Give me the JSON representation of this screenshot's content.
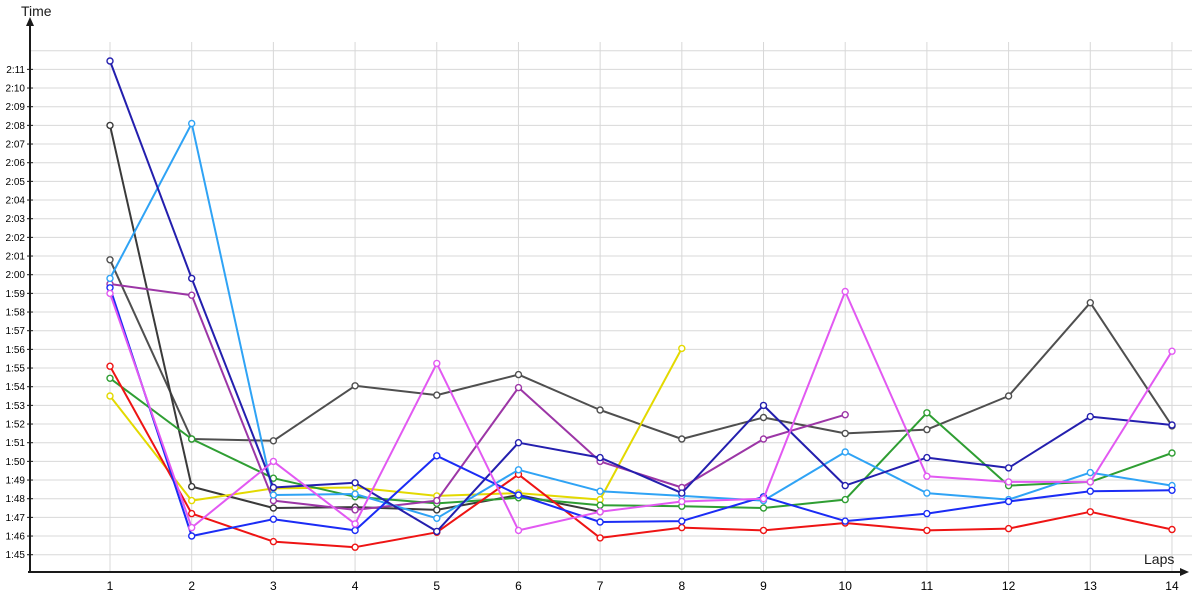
{
  "labels": {
    "y_axis_title": "Time",
    "x_axis_title": "Laps"
  },
  "axes": {
    "y_tick_labels": [
      "2:11",
      "2:10",
      "2:09",
      "2:08",
      "2:07",
      "2:06",
      "2:05",
      "2:04",
      "2:03",
      "2:02",
      "2:01",
      "2:00",
      "1:59",
      "1:58",
      "1:57",
      "1:56",
      "1:55",
      "1:54",
      "1:53",
      "1:52",
      "1:51",
      "1:50",
      "1:49",
      "1:48",
      "1:47",
      "1:46",
      "1:45"
    ],
    "x_tick_labels": [
      "1",
      "2",
      "3",
      "4",
      "5",
      "6",
      "7",
      "8",
      "9",
      "10",
      "11",
      "12",
      "13",
      "14"
    ]
  },
  "chart_data": {
    "type": "line",
    "title": "",
    "xlabel": "Laps",
    "ylabel": "Time",
    "x": [
      1,
      2,
      3,
      4,
      5,
      6,
      7,
      8,
      9,
      10,
      11,
      12,
      13,
      14
    ],
    "y_axis_range_seconds": [
      105,
      132
    ],
    "y_tick_step_seconds": 1,
    "grid": true,
    "legend_position": "none",
    "marker": "open-circle",
    "series": [
      {
        "id": "charcoal-gray",
        "color": "#4f4f4f",
        "laps": [
          1,
          2,
          3,
          4,
          5,
          6,
          7,
          8,
          9,
          10,
          11,
          12,
          13,
          14
        ],
        "seconds": [
          120.8,
          111.2,
          111.1,
          114.05,
          113.55,
          114.65,
          112.75,
          111.2,
          112.35,
          111.5,
          111.7,
          113.5,
          118.5,
          111.9
        ],
        "lap_times": [
          "2:00.8",
          "1:51.2",
          "1:51.1",
          "1:54.1",
          "1:53.6",
          "1:54.7",
          "1:52.8",
          "1:51.2",
          "1:52.4",
          "1:51.5",
          "1:51.7",
          "1:53.5",
          "1:58.5",
          "1:51.9"
        ]
      },
      {
        "id": "dark-gray",
        "color": "#3a3a3a",
        "laps": [
          1,
          2,
          3,
          4,
          5,
          6,
          7
        ],
        "seconds": [
          128.0,
          108.65,
          107.5,
          107.55,
          107.4,
          108.2,
          107.3
        ],
        "lap_times": [
          "2:08.0",
          "1:48.7",
          "1:47.5",
          "1:47.6",
          "1:47.4",
          "1:48.2",
          "1:47.3"
        ]
      },
      {
        "id": "yellow",
        "color": "#e3d900",
        "laps": [
          1,
          2,
          3,
          4,
          5,
          6,
          7,
          8
        ],
        "seconds": [
          113.5,
          107.9,
          108.55,
          108.6,
          108.15,
          108.3,
          107.95,
          116.05
        ],
        "lap_times": [
          "1:53.5",
          "1:47.9",
          "1:48.6",
          "1:48.6",
          "1:48.2",
          "1:48.3",
          "1:48.0",
          "1:56.1"
        ]
      },
      {
        "id": "green",
        "color": "#2f9e33",
        "laps": [
          1,
          2,
          3,
          4,
          5,
          6,
          7,
          8,
          9,
          10,
          11,
          12,
          13,
          14
        ],
        "seconds": [
          114.45,
          111.2,
          109.1,
          108.1,
          107.75,
          108.05,
          107.65,
          107.6,
          107.5,
          107.95,
          112.6,
          108.7,
          108.9,
          110.45
        ],
        "lap_times": [
          "1:54.5",
          "1:51.2",
          "1:49.1",
          "1:48.1",
          "1:47.8",
          "1:48.1",
          "1:47.7",
          "1:47.6",
          "1:47.5",
          "1:48.0",
          "1:52.6",
          "1:48.7",
          "1:48.9",
          "1:50.5"
        ]
      },
      {
        "id": "purple",
        "color": "#9c36a6",
        "laps": [
          1,
          2,
          3,
          4,
          5,
          6,
          7,
          8,
          9,
          10
        ],
        "seconds": [
          119.5,
          118.9,
          107.9,
          107.4,
          107.9,
          113.95,
          110.0,
          108.6,
          111.2,
          112.5
        ],
        "lap_times": [
          "1:59.5",
          "1:58.9",
          "1:47.9",
          "1:47.4",
          "1:47.9",
          "1:54.0",
          "1:50.0",
          "1:48.6",
          "1:51.2",
          "1:52.5"
        ]
      },
      {
        "id": "red",
        "color": "#ee1414",
        "laps": [
          1,
          2,
          3,
          4,
          5,
          6,
          7,
          8,
          9,
          10,
          11,
          12,
          13,
          14
        ],
        "seconds": [
          115.1,
          107.2,
          105.7,
          105.4,
          106.2,
          109.3,
          105.9,
          106.45,
          106.3,
          106.7,
          106.3,
          106.4,
          107.3,
          106.35
        ],
        "lap_times": [
          "1:55.1",
          "1:47.2",
          "1:45.7",
          "1:45.4",
          "1:46.2",
          "1:49.3",
          "1:45.9",
          "1:46.5",
          "1:46.3",
          "1:46.7",
          "1:46.3",
          "1:46.4",
          "1:47.3",
          "1:46.4"
        ]
      },
      {
        "id": "light-blue",
        "color": "#2fa3f5",
        "laps": [
          1,
          2,
          3,
          4,
          5,
          6,
          7,
          8,
          9,
          10,
          11,
          12,
          13,
          14
        ],
        "seconds": [
          119.8,
          128.1,
          108.2,
          108.25,
          106.95,
          109.55,
          108.4,
          108.15,
          107.9,
          110.5,
          108.3,
          107.95,
          109.4,
          108.7
        ],
        "lap_times": [
          "1:59.8",
          "2:08.1",
          "1:48.2",
          "1:48.3",
          "1:47.0",
          "1:49.6",
          "1:48.4",
          "1:48.2",
          "1:47.9",
          "1:50.5",
          "1:48.3",
          "1:48.0",
          "1:49.4",
          "1:48.7"
        ]
      },
      {
        "id": "blue",
        "color": "#1b2cf5",
        "laps": [
          1,
          2,
          3,
          4,
          5,
          6,
          7,
          8,
          9,
          10,
          11,
          12,
          13,
          14
        ],
        "seconds": [
          119.3,
          106.0,
          106.9,
          106.3,
          110.3,
          108.2,
          106.75,
          106.8,
          108.1,
          106.8,
          107.2,
          107.85,
          108.4,
          108.45
        ],
        "lap_times": [
          "1:59.3",
          "1:46.0",
          "1:46.9",
          "1:46.3",
          "1:50.3",
          "1:48.2",
          "1:46.8",
          "1:46.8",
          "1:48.1",
          "1:46.8",
          "1:47.2",
          "1:47.9",
          "1:48.4",
          "1:48.5"
        ]
      },
      {
        "id": "dark-blue",
        "color": "#241fae",
        "laps": [
          1,
          2,
          3,
          4,
          5,
          6,
          7,
          8,
          9,
          10,
          11,
          12,
          13,
          14
        ],
        "seconds": [
          131.45,
          119.8,
          108.6,
          108.85,
          106.25,
          111.0,
          110.2,
          108.3,
          113.0,
          108.7,
          110.2,
          109.65,
          112.4,
          111.95
        ],
        "lap_times": [
          "2:11.4",
          "1:59.8",
          "1:48.6",
          "1:48.9",
          "1:46.3",
          "1:51.0",
          "1:50.2",
          "1:48.3",
          "1:53.0",
          "1:48.7",
          "1:50.2",
          "1:49.7",
          "1:52.4",
          "1:52.0"
        ]
      },
      {
        "id": "magenta",
        "color": "#e259f2",
        "laps": [
          1,
          2,
          3,
          4,
          5,
          6,
          7,
          8,
          9,
          10,
          11,
          12,
          13,
          14
        ],
        "seconds": [
          119.0,
          106.45,
          110.0,
          106.65,
          115.25,
          106.3,
          107.3,
          107.85,
          108.0,
          119.1,
          109.2,
          108.9,
          108.9,
          115.9
        ],
        "lap_times": [
          "1:59.0",
          "1:46.5",
          "1:50.0",
          "1:46.7",
          "1:55.3",
          "1:46.3",
          "1:47.3",
          "1:47.9",
          "1:48.0",
          "1:59.1",
          "1:49.2",
          "1:48.9",
          "1:48.9",
          "1:55.9"
        ]
      }
    ]
  },
  "style": {
    "grid_color": "#d8d8d8",
    "axis_color": "#1a1a1a",
    "background": "#ffffff"
  }
}
